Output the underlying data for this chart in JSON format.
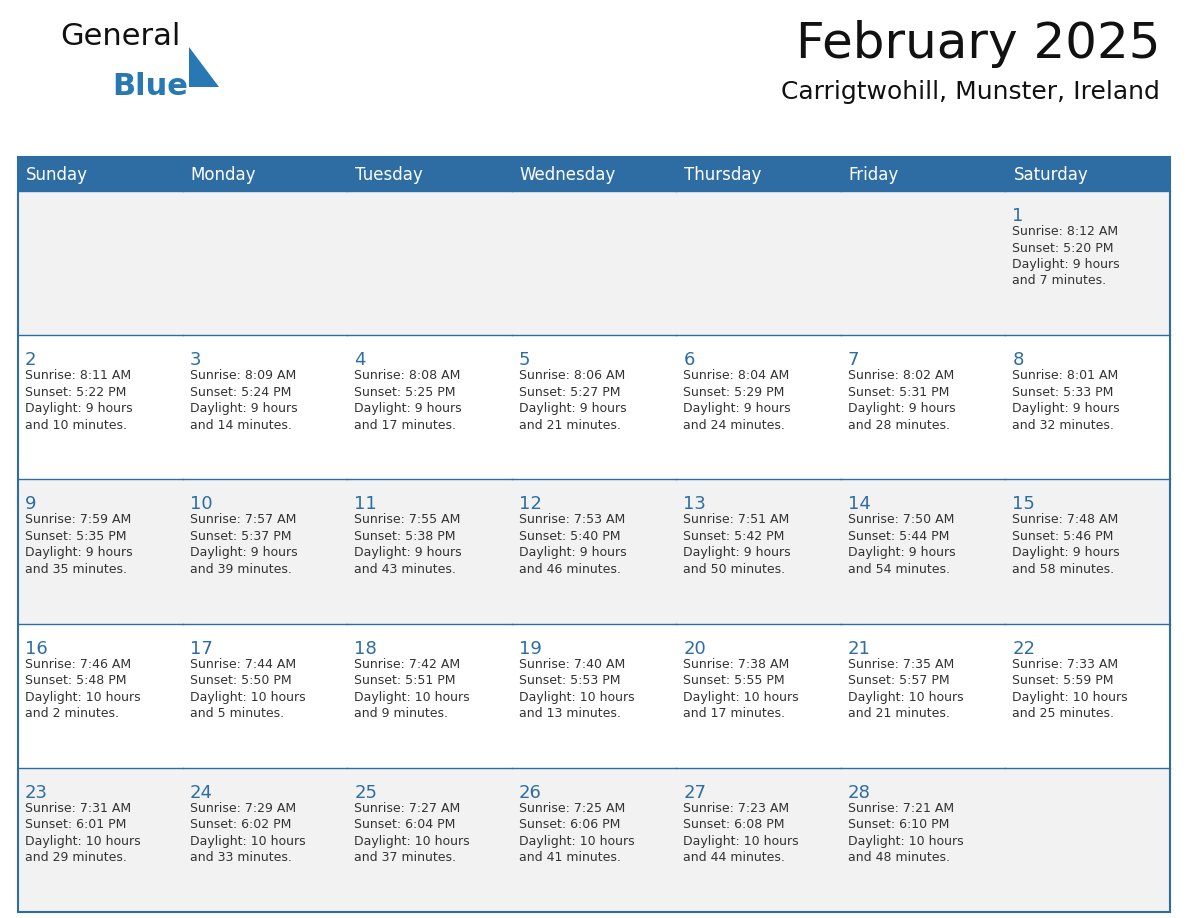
{
  "title": "February 2025",
  "subtitle": "Carrigtwohill, Munster, Ireland",
  "header_bg": "#2E6DA4",
  "header_text_color": "#FFFFFF",
  "cell_bg_row0": "#F2F2F2",
  "cell_bg_row1": "#FFFFFF",
  "cell_bg_row2": "#F2F2F2",
  "cell_bg_row3": "#FFFFFF",
  "cell_bg_row4": "#F2F2F2",
  "border_color": "#2E6DA4",
  "text_color_dark": "#333333",
  "logo_general_color": "#111111",
  "logo_blue_color": "#2878B4",
  "day_names": [
    "Sunday",
    "Monday",
    "Tuesday",
    "Wednesday",
    "Thursday",
    "Friday",
    "Saturday"
  ],
  "title_fontsize": 36,
  "subtitle_fontsize": 18,
  "header_fontsize": 12,
  "day_number_fontsize": 13,
  "info_fontsize": 9,
  "calendar_data": [
    [
      {
        "day": "",
        "info": ""
      },
      {
        "day": "",
        "info": ""
      },
      {
        "day": "",
        "info": ""
      },
      {
        "day": "",
        "info": ""
      },
      {
        "day": "",
        "info": ""
      },
      {
        "day": "",
        "info": ""
      },
      {
        "day": "1",
        "info": "Sunrise: 8:12 AM\nSunset: 5:20 PM\nDaylight: 9 hours\nand 7 minutes."
      }
    ],
    [
      {
        "day": "2",
        "info": "Sunrise: 8:11 AM\nSunset: 5:22 PM\nDaylight: 9 hours\nand 10 minutes."
      },
      {
        "day": "3",
        "info": "Sunrise: 8:09 AM\nSunset: 5:24 PM\nDaylight: 9 hours\nand 14 minutes."
      },
      {
        "day": "4",
        "info": "Sunrise: 8:08 AM\nSunset: 5:25 PM\nDaylight: 9 hours\nand 17 minutes."
      },
      {
        "day": "5",
        "info": "Sunrise: 8:06 AM\nSunset: 5:27 PM\nDaylight: 9 hours\nand 21 minutes."
      },
      {
        "day": "6",
        "info": "Sunrise: 8:04 AM\nSunset: 5:29 PM\nDaylight: 9 hours\nand 24 minutes."
      },
      {
        "day": "7",
        "info": "Sunrise: 8:02 AM\nSunset: 5:31 PM\nDaylight: 9 hours\nand 28 minutes."
      },
      {
        "day": "8",
        "info": "Sunrise: 8:01 AM\nSunset: 5:33 PM\nDaylight: 9 hours\nand 32 minutes."
      }
    ],
    [
      {
        "day": "9",
        "info": "Sunrise: 7:59 AM\nSunset: 5:35 PM\nDaylight: 9 hours\nand 35 minutes."
      },
      {
        "day": "10",
        "info": "Sunrise: 7:57 AM\nSunset: 5:37 PM\nDaylight: 9 hours\nand 39 minutes."
      },
      {
        "day": "11",
        "info": "Sunrise: 7:55 AM\nSunset: 5:38 PM\nDaylight: 9 hours\nand 43 minutes."
      },
      {
        "day": "12",
        "info": "Sunrise: 7:53 AM\nSunset: 5:40 PM\nDaylight: 9 hours\nand 46 minutes."
      },
      {
        "day": "13",
        "info": "Sunrise: 7:51 AM\nSunset: 5:42 PM\nDaylight: 9 hours\nand 50 minutes."
      },
      {
        "day": "14",
        "info": "Sunrise: 7:50 AM\nSunset: 5:44 PM\nDaylight: 9 hours\nand 54 minutes."
      },
      {
        "day": "15",
        "info": "Sunrise: 7:48 AM\nSunset: 5:46 PM\nDaylight: 9 hours\nand 58 minutes."
      }
    ],
    [
      {
        "day": "16",
        "info": "Sunrise: 7:46 AM\nSunset: 5:48 PM\nDaylight: 10 hours\nand 2 minutes."
      },
      {
        "day": "17",
        "info": "Sunrise: 7:44 AM\nSunset: 5:50 PM\nDaylight: 10 hours\nand 5 minutes."
      },
      {
        "day": "18",
        "info": "Sunrise: 7:42 AM\nSunset: 5:51 PM\nDaylight: 10 hours\nand 9 minutes."
      },
      {
        "day": "19",
        "info": "Sunrise: 7:40 AM\nSunset: 5:53 PM\nDaylight: 10 hours\nand 13 minutes."
      },
      {
        "day": "20",
        "info": "Sunrise: 7:38 AM\nSunset: 5:55 PM\nDaylight: 10 hours\nand 17 minutes."
      },
      {
        "day": "21",
        "info": "Sunrise: 7:35 AM\nSunset: 5:57 PM\nDaylight: 10 hours\nand 21 minutes."
      },
      {
        "day": "22",
        "info": "Sunrise: 7:33 AM\nSunset: 5:59 PM\nDaylight: 10 hours\nand 25 minutes."
      }
    ],
    [
      {
        "day": "23",
        "info": "Sunrise: 7:31 AM\nSunset: 6:01 PM\nDaylight: 10 hours\nand 29 minutes."
      },
      {
        "day": "24",
        "info": "Sunrise: 7:29 AM\nSunset: 6:02 PM\nDaylight: 10 hours\nand 33 minutes."
      },
      {
        "day": "25",
        "info": "Sunrise: 7:27 AM\nSunset: 6:04 PM\nDaylight: 10 hours\nand 37 minutes."
      },
      {
        "day": "26",
        "info": "Sunrise: 7:25 AM\nSunset: 6:06 PM\nDaylight: 10 hours\nand 41 minutes."
      },
      {
        "day": "27",
        "info": "Sunrise: 7:23 AM\nSunset: 6:08 PM\nDaylight: 10 hours\nand 44 minutes."
      },
      {
        "day": "28",
        "info": "Sunrise: 7:21 AM\nSunset: 6:10 PM\nDaylight: 10 hours\nand 48 minutes."
      },
      {
        "day": "",
        "info": ""
      }
    ]
  ]
}
